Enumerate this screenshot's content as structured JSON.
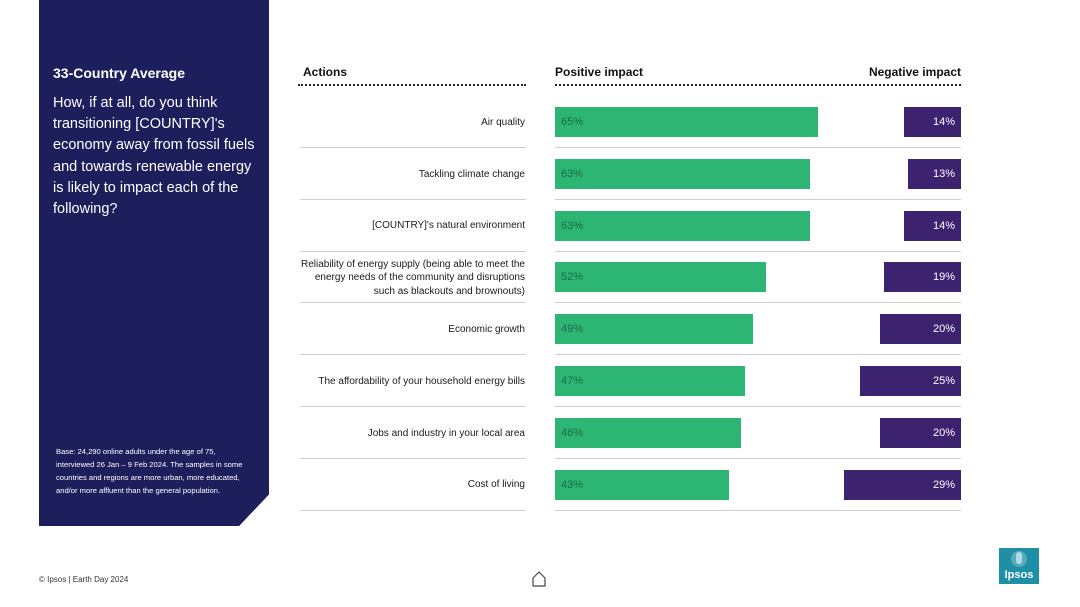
{
  "panel": {
    "title": "33-Country Average",
    "question": "How, if at all, do you think transitioning [COUNTRY]'s economy away from fossil fuels and towards renewable energy is likely to impact each of the following?",
    "base_note": "Base: 24,290 online adults under the age of 75, interviewed 26 Jan – 9 Feb 2024. The samples in some countries and regions are more urban, more educated, and/or more affluent than the general population."
  },
  "headers": {
    "actions": "Actions",
    "positive": "Positive impact",
    "negative": "Negative impact"
  },
  "chart_data": {
    "type": "bar",
    "categories": [
      "Air quality",
      "Tackling climate change",
      "[COUNTRY]'s natural environment",
      "Reliability of energy supply (being able to meet the energy needs of the community and disruptions such as blackouts and brownouts)",
      "Economic growth",
      "The affordability of your household energy bills",
      "Jobs and industry in your local area",
      "Cost of living"
    ],
    "series": [
      {
        "name": "Positive impact",
        "values": [
          65,
          63,
          63,
          52,
          49,
          47,
          46,
          43
        ],
        "color": "#2db574"
      },
      {
        "name": "Negative impact",
        "values": [
          14,
          13,
          14,
          19,
          20,
          25,
          20,
          29
        ],
        "color": "#3d2270"
      }
    ],
    "value_suffix": "%",
    "xlim": [
      0,
      100
    ]
  },
  "footer": {
    "copyright": "© Ipsos | Earth Day 2024",
    "home_icon": "home-icon"
  },
  "logo": {
    "text": "Ipsos",
    "color": "#1f8fa6"
  }
}
